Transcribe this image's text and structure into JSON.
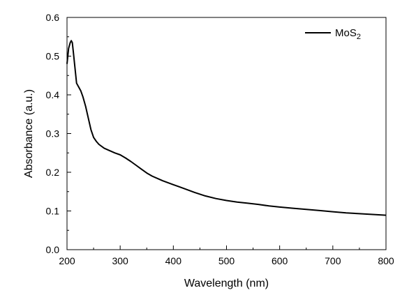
{
  "chart_data": {
    "type": "line",
    "xlabel": "Wavelength (nm)",
    "ylabel": "Absorbance (a.u.)",
    "xlim": [
      200,
      800
    ],
    "ylim": [
      0.0,
      0.6
    ],
    "x_ticks": [
      200,
      300,
      400,
      500,
      600,
      700,
      800
    ],
    "x_tick_labels": [
      "200",
      "300",
      "400",
      "500",
      "600",
      "700",
      "800"
    ],
    "y_ticks": [
      0.0,
      0.1,
      0.2,
      0.3,
      0.4,
      0.5,
      0.6
    ],
    "y_tick_labels": [
      "0.0",
      "0.1",
      "0.2",
      "0.3",
      "0.4",
      "0.5",
      "0.6"
    ],
    "grid": false,
    "legend": {
      "placement": "top-right",
      "label_main": "MoS",
      "label_sub": "2"
    },
    "series": [
      {
        "name": "MoS2",
        "color": "#000000",
        "x": [
          200,
          203,
          206,
          208,
          210,
          212,
          215,
          218,
          222,
          226,
          230,
          235,
          240,
          245,
          250,
          255,
          260,
          270,
          280,
          290,
          300,
          310,
          320,
          330,
          340,
          350,
          360,
          380,
          400,
          420,
          440,
          460,
          480,
          500,
          520,
          540,
          560,
          580,
          600,
          625,
          650,
          675,
          700,
          725,
          750,
          775,
          800
        ],
        "y": [
          0.48,
          0.52,
          0.535,
          0.54,
          0.535,
          0.51,
          0.47,
          0.43,
          0.42,
          0.41,
          0.395,
          0.37,
          0.34,
          0.31,
          0.29,
          0.28,
          0.272,
          0.262,
          0.256,
          0.25,
          0.245,
          0.237,
          0.228,
          0.218,
          0.208,
          0.198,
          0.19,
          0.178,
          0.168,
          0.158,
          0.148,
          0.139,
          0.132,
          0.127,
          0.123,
          0.12,
          0.117,
          0.113,
          0.11,
          0.107,
          0.104,
          0.101,
          0.098,
          0.095,
          0.093,
          0.091,
          0.089
        ]
      }
    ]
  }
}
